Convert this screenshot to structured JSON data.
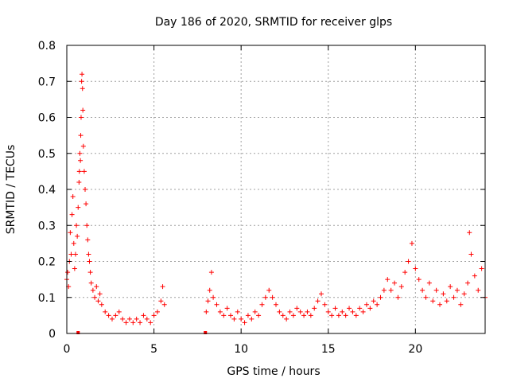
{
  "chart_data": {
    "type": "scatter",
    "title": "Day 186 of 2020, SRMTID for receiver glps",
    "xlabel": "GPS time / hours",
    "ylabel": "SRMTID / TECUs",
    "xlim": [
      0,
      24
    ],
    "ylim": [
      0,
      0.8
    ],
    "x_ticks": [
      0,
      5,
      10,
      15,
      20
    ],
    "x_tick_labels": [
      "0",
      "5",
      "10",
      "15",
      "20"
    ],
    "y_ticks": [
      0,
      0.1,
      0.2,
      0.3,
      0.4,
      0.5,
      0.6,
      0.7,
      0.8
    ],
    "y_tick_labels": [
      "0",
      "0.1",
      "0.2",
      "0.3",
      "0.4",
      "0.5",
      "0.6",
      "0.7",
      "0.8"
    ],
    "grid": true,
    "marker": "+",
    "color": "#ff0000",
    "series": [
      {
        "name": "SRMTID",
        "points": [
          [
            0.0,
            0.15
          ],
          [
            0.05,
            0.17
          ],
          [
            0.1,
            0.13
          ],
          [
            0.15,
            0.2
          ],
          [
            0.2,
            0.28
          ],
          [
            0.25,
            0.22
          ],
          [
            0.3,
            0.33
          ],
          [
            0.35,
            0.38
          ],
          [
            0.4,
            0.25
          ],
          [
            0.45,
            0.18
          ],
          [
            0.5,
            0.22
          ],
          [
            0.55,
            0.3
          ],
          [
            0.6,
            0.27
          ],
          [
            0.65,
            0.35
          ],
          [
            0.7,
            0.42
          ],
          [
            0.72,
            0.45
          ],
          [
            0.75,
            0.5
          ],
          [
            0.78,
            0.48
          ],
          [
            0.8,
            0.55
          ],
          [
            0.82,
            0.6
          ],
          [
            0.85,
            0.7
          ],
          [
            0.87,
            0.72
          ],
          [
            0.9,
            0.68
          ],
          [
            0.92,
            0.62
          ],
          [
            0.95,
            0.52
          ],
          [
            1.0,
            0.45
          ],
          [
            1.05,
            0.4
          ],
          [
            1.1,
            0.36
          ],
          [
            1.15,
            0.3
          ],
          [
            1.2,
            0.26
          ],
          [
            1.25,
            0.22
          ],
          [
            1.3,
            0.2
          ],
          [
            1.35,
            0.17
          ],
          [
            1.4,
            0.14
          ],
          [
            1.5,
            0.12
          ],
          [
            1.6,
            0.1
          ],
          [
            1.7,
            0.13
          ],
          [
            1.8,
            0.09
          ],
          [
            1.9,
            0.11
          ],
          [
            2.0,
            0.08
          ],
          [
            2.2,
            0.06
          ],
          [
            2.4,
            0.05
          ],
          [
            2.6,
            0.04
          ],
          [
            2.8,
            0.05
          ],
          [
            3.0,
            0.06
          ],
          [
            3.2,
            0.04
          ],
          [
            3.4,
            0.03
          ],
          [
            3.6,
            0.04
          ],
          [
            3.8,
            0.03
          ],
          [
            4.0,
            0.04
          ],
          [
            4.2,
            0.03
          ],
          [
            4.4,
            0.05
          ],
          [
            4.6,
            0.04
          ],
          [
            4.8,
            0.03
          ],
          [
            5.0,
            0.05
          ],
          [
            5.2,
            0.06
          ],
          [
            5.4,
            0.09
          ],
          [
            5.5,
            0.13
          ],
          [
            5.6,
            0.08
          ],
          [
            8.0,
            0.06
          ],
          [
            8.1,
            0.09
          ],
          [
            8.2,
            0.12
          ],
          [
            8.3,
            0.17
          ],
          [
            8.4,
            0.1
          ],
          [
            8.6,
            0.08
          ],
          [
            8.8,
            0.06
          ],
          [
            9.0,
            0.05
          ],
          [
            9.2,
            0.07
          ],
          [
            9.4,
            0.05
          ],
          [
            9.6,
            0.04
          ],
          [
            9.8,
            0.06
          ],
          [
            10.0,
            0.04
          ],
          [
            10.2,
            0.03
          ],
          [
            10.4,
            0.05
          ],
          [
            10.6,
            0.04
          ],
          [
            10.8,
            0.06
          ],
          [
            11.0,
            0.05
          ],
          [
            11.2,
            0.08
          ],
          [
            11.4,
            0.1
          ],
          [
            11.6,
            0.12
          ],
          [
            11.8,
            0.1
          ],
          [
            12.0,
            0.08
          ],
          [
            12.2,
            0.06
          ],
          [
            12.4,
            0.05
          ],
          [
            12.6,
            0.04
          ],
          [
            12.8,
            0.06
          ],
          [
            13.0,
            0.05
          ],
          [
            13.2,
            0.07
          ],
          [
            13.4,
            0.06
          ],
          [
            13.6,
            0.05
          ],
          [
            13.8,
            0.06
          ],
          [
            14.0,
            0.05
          ],
          [
            14.2,
            0.07
          ],
          [
            14.4,
            0.09
          ],
          [
            14.6,
            0.11
          ],
          [
            14.8,
            0.08
          ],
          [
            15.0,
            0.06
          ],
          [
            15.2,
            0.05
          ],
          [
            15.4,
            0.07
          ],
          [
            15.6,
            0.05
          ],
          [
            15.8,
            0.06
          ],
          [
            16.0,
            0.05
          ],
          [
            16.2,
            0.07
          ],
          [
            16.4,
            0.06
          ],
          [
            16.6,
            0.05
          ],
          [
            16.8,
            0.07
          ],
          [
            17.0,
            0.06
          ],
          [
            17.2,
            0.08
          ],
          [
            17.4,
            0.07
          ],
          [
            17.6,
            0.09
          ],
          [
            17.8,
            0.08
          ],
          [
            18.0,
            0.1
          ],
          [
            18.2,
            0.12
          ],
          [
            18.4,
            0.15
          ],
          [
            18.6,
            0.12
          ],
          [
            18.8,
            0.14
          ],
          [
            19.0,
            0.1
          ],
          [
            19.2,
            0.13
          ],
          [
            19.4,
            0.17
          ],
          [
            19.6,
            0.2
          ],
          [
            19.8,
            0.25
          ],
          [
            20.0,
            0.18
          ],
          [
            20.2,
            0.15
          ],
          [
            20.4,
            0.12
          ],
          [
            20.6,
            0.1
          ],
          [
            20.8,
            0.14
          ],
          [
            21.0,
            0.09
          ],
          [
            21.2,
            0.12
          ],
          [
            21.4,
            0.08
          ],
          [
            21.6,
            0.11
          ],
          [
            21.8,
            0.09
          ],
          [
            22.0,
            0.13
          ],
          [
            22.2,
            0.1
          ],
          [
            22.4,
            0.12
          ],
          [
            22.6,
            0.08
          ],
          [
            22.8,
            0.11
          ],
          [
            23.0,
            0.14
          ],
          [
            23.1,
            0.28
          ],
          [
            23.2,
            0.22
          ],
          [
            23.4,
            0.16
          ],
          [
            23.6,
            0.12
          ],
          [
            23.8,
            0.18
          ],
          [
            24.0,
            0.1
          ]
        ]
      }
    ],
    "gap_markers": [
      [
        0.65,
        0.0
      ],
      [
        7.95,
        0.0
      ]
    ]
  }
}
